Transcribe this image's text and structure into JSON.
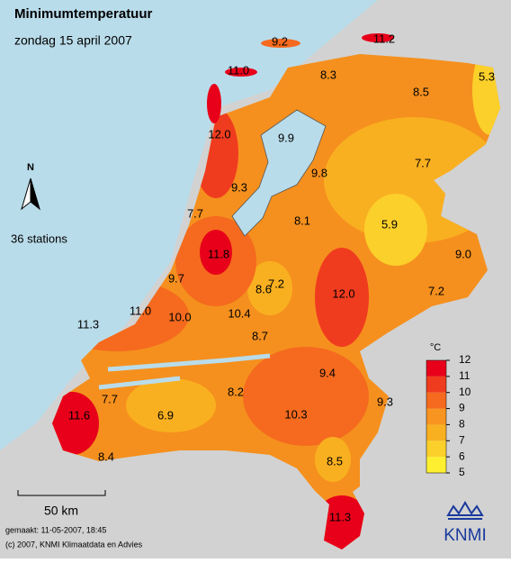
{
  "header": {
    "title": "Minimumtemperatuur",
    "subtitle": "zondag 15 april 2007"
  },
  "station_count": "36 stations",
  "north": "N",
  "stations": [
    "9.2",
    "11.2",
    "11.0",
    "8.3",
    "5.3",
    "8.5",
    "12.0",
    "9.9",
    "9.8",
    "7.7",
    "9.3",
    "7.7",
    "8.1",
    "5.9",
    "11.8",
    "9.0",
    "9.7",
    "8.6",
    "7.2",
    "12.0",
    "7.2",
    "11.0",
    "10.0",
    "10.4",
    "11.3",
    "8.7",
    "9.4",
    "7.7",
    "8.2",
    "9.3",
    "11.6",
    "6.9",
    "10.3",
    "8.4",
    "8.5",
    "11.3"
  ],
  "legend": {
    "unit": "°C",
    "ticks": [
      12,
      11,
      10,
      9,
      8,
      7,
      6,
      5
    ],
    "colors": [
      "#e8001a",
      "#f03c1e",
      "#f56a1e",
      "#f89420",
      "#f9b020",
      "#fbd02a",
      "#fef030"
    ]
  },
  "scale": "50 km",
  "footer": {
    "made": "gemaakt: 11-05-2007, 18:45",
    "copyright": "(c) 2007, KNMI Klimaatdata en Advies"
  },
  "logo": "KNMI"
}
